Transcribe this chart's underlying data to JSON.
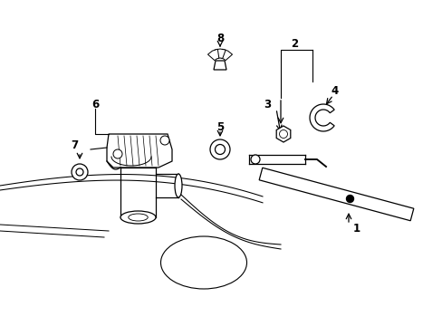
{
  "bg_color": "#ffffff",
  "line_color": "#000000",
  "lw": 0.9,
  "fig_w": 4.89,
  "fig_h": 3.6,
  "dpi": 100
}
